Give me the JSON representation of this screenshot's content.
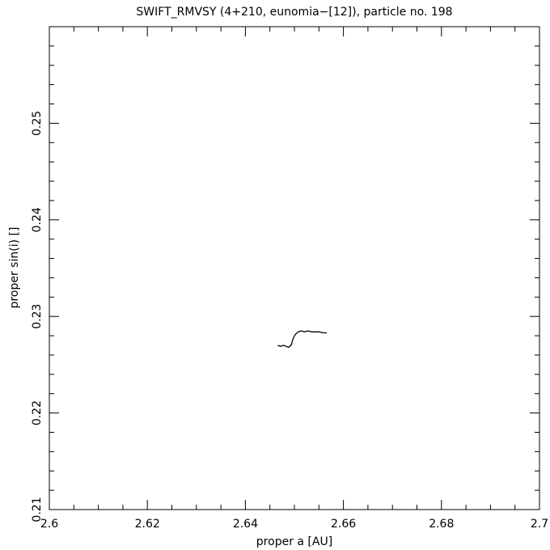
{
  "chart_data": {
    "type": "line",
    "title": "SWIFT_RMVSY (4+210, eunomia−[12]), particle no. 198",
    "xlabel": "proper a [AU]",
    "ylabel": "proper sin(i) []",
    "xlim": [
      2.6,
      2.7
    ],
    "ylim": [
      0.21,
      0.26
    ],
    "x_ticks": [
      2.6,
      2.62,
      2.64,
      2.66,
      2.68,
      2.7
    ],
    "x_tick_labels": [
      "2.6",
      "2.62",
      "2.64",
      "2.66",
      "2.68",
      "2.7"
    ],
    "y_ticks": [
      0.21,
      0.22,
      0.23,
      0.24,
      0.25
    ],
    "y_tick_labels": [
      "0.21",
      "0.22",
      "0.23",
      "0.24",
      "0.25"
    ],
    "x_minor_step": 0.005,
    "y_minor_step": 0.002,
    "grid": false,
    "legend": "none",
    "series": [
      {
        "x": [
          2.6466,
          2.6472,
          2.6478,
          2.6483,
          2.6488,
          2.6491,
          2.6494,
          2.6496,
          2.6499,
          2.6503,
          2.6508,
          2.6514,
          2.6521,
          2.6528,
          2.6535,
          2.6542,
          2.655,
          2.6558,
          2.6566
        ],
        "y": [
          0.227,
          0.2269,
          0.227,
          0.2269,
          0.2268,
          0.2269,
          0.2271,
          0.2275,
          0.2279,
          0.2282,
          0.2284,
          0.2285,
          0.2284,
          0.2285,
          0.2284,
          0.2284,
          0.2284,
          0.2283,
          0.2283
        ],
        "color": "#000000"
      }
    ]
  }
}
